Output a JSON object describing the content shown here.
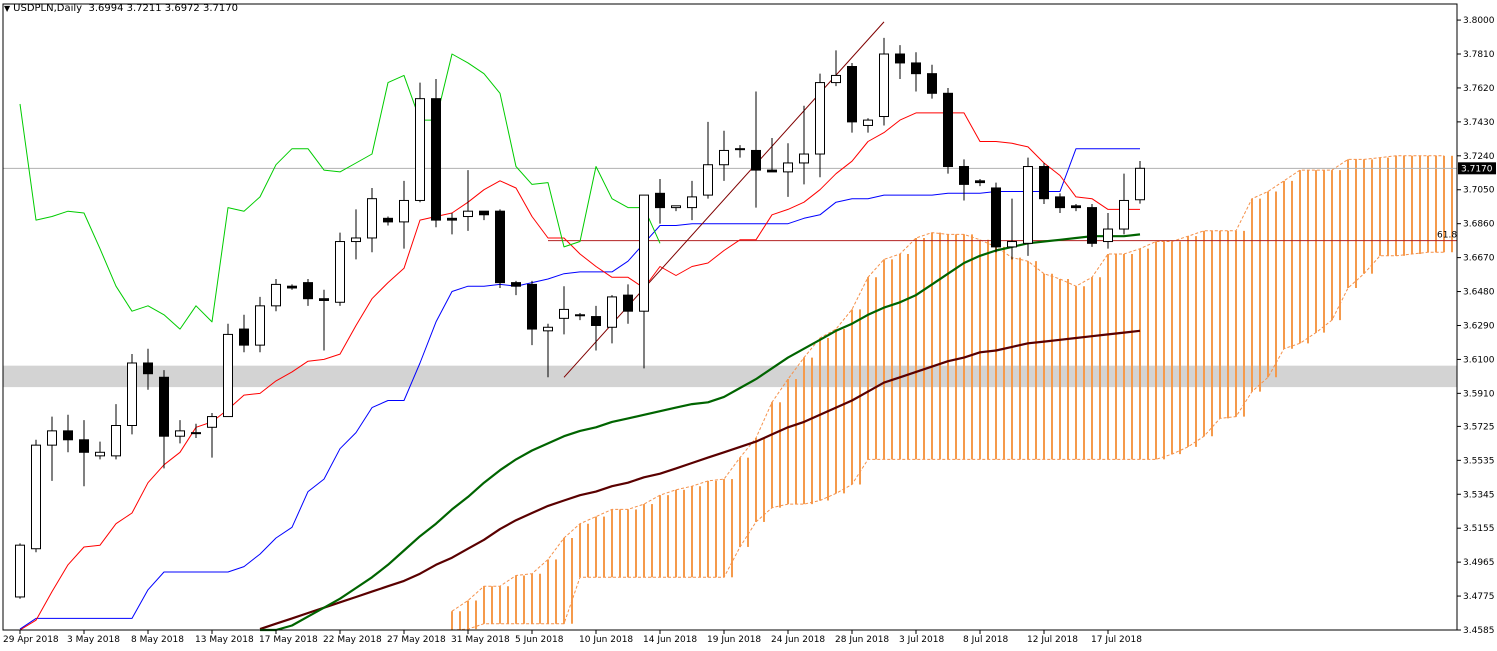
{
  "header": {
    "symbol": "USDPLN,Daily",
    "ohlc": "3.6994 3.7211 3.6972 3.7170",
    "menu_icon": "triangle-down-icon"
  },
  "chart_data": {
    "type": "candlestick",
    "title": "USDPLN,Daily",
    "xlabel": "",
    "ylabel": "",
    "ylim": [
      3.4585,
      3.809
    ],
    "y_ticks": [
      "3.8000",
      "3.7810",
      "3.7620",
      "3.7430",
      "3.7240",
      "3.7050",
      "3.6860",
      "3.6670",
      "3.6480",
      "3.6290",
      "3.6100",
      "3.5910",
      "3.5725",
      "3.5535",
      "3.5345",
      "3.5155",
      "3.4965",
      "3.4775",
      "3.4585"
    ],
    "x_ticks": [
      {
        "i": 0,
        "label": "29 Apr 2018"
      },
      {
        "i": 4,
        "label": "3 May 2018"
      },
      {
        "i": 8,
        "label": "8 May 2018"
      },
      {
        "i": 12,
        "label": "13 May 2018"
      },
      {
        "i": 16,
        "label": "17 May 2018"
      },
      {
        "i": 20,
        "label": "22 May 2018"
      },
      {
        "i": 24,
        "label": "27 May 2018"
      },
      {
        "i": 28,
        "label": "31 May 2018"
      },
      {
        "i": 32,
        "label": "5 Jun 2018"
      },
      {
        "i": 36,
        "label": "10 Jun 2018"
      },
      {
        "i": 40,
        "label": "14 Jun 2018"
      },
      {
        "i": 44,
        "label": "19 Jun 2018"
      },
      {
        "i": 48,
        "label": "24 Jun 2018"
      },
      {
        "i": 52,
        "label": "28 Jun 2018"
      },
      {
        "i": 56,
        "label": "3 Jul 2018"
      },
      {
        "i": 60,
        "label": "8 Jul 2018"
      },
      {
        "i": 64,
        "label": "12 Jul 2018"
      },
      {
        "i": 68,
        "label": "17 Jul 2018"
      }
    ],
    "current_price": "3.7170",
    "fib_label": "61.8",
    "fib_level": 3.6765,
    "support_zone": [
      3.598,
      3.603
    ],
    "candles": [
      [
        3.477,
        3.507,
        3.476,
        3.506
      ],
      [
        3.504,
        3.565,
        3.502,
        3.562
      ],
      [
        3.562,
        3.578,
        3.542,
        3.57
      ],
      [
        3.57,
        3.579,
        3.558,
        3.565
      ],
      [
        3.565,
        3.576,
        3.539,
        3.558
      ],
      [
        3.556,
        3.564,
        3.554,
        3.558
      ],
      [
        3.556,
        3.585,
        3.554,
        3.573
      ],
      [
        3.573,
        3.613,
        3.568,
        3.608
      ],
      [
        3.608,
        3.616,
        3.593,
        3.602
      ],
      [
        3.6,
        3.604,
        3.549,
        3.567
      ],
      [
        3.567,
        3.576,
        3.563,
        3.57
      ],
      [
        3.569,
        3.574,
        3.566,
        3.569
      ],
      [
        3.572,
        3.58,
        3.555,
        3.578
      ],
      [
        3.578,
        3.63,
        3.578,
        3.624
      ],
      [
        3.627,
        3.635,
        3.614,
        3.618
      ],
      [
        3.618,
        3.645,
        3.614,
        3.64
      ],
      [
        3.64,
        3.655,
        3.637,
        3.652
      ],
      [
        3.651,
        3.652,
        3.649,
        3.65
      ],
      [
        3.653,
        3.655,
        3.64,
        3.644
      ],
      [
        3.644,
        3.649,
        3.615,
        3.643
      ],
      [
        3.642,
        3.681,
        3.64,
        3.676
      ],
      [
        3.676,
        3.694,
        3.666,
        3.678
      ],
      [
        3.678,
        3.706,
        3.67,
        3.7
      ],
      [
        3.689,
        3.69,
        3.685,
        3.687
      ],
      [
        3.687,
        3.71,
        3.672,
        3.699
      ],
      [
        3.699,
        3.765,
        3.698,
        3.756
      ],
      [
        3.756,
        3.767,
        3.684,
        3.688
      ],
      [
        3.689,
        3.692,
        3.68,
        3.688
      ],
      [
        3.69,
        3.716,
        3.682,
        3.693
      ],
      [
        3.693,
        3.693,
        3.688,
        3.691
      ],
      [
        3.693,
        3.694,
        3.65,
        3.653
      ],
      [
        3.653,
        3.654,
        3.646,
        3.651
      ],
      [
        3.652,
        3.654,
        3.618,
        3.627
      ],
      [
        3.626,
        3.63,
        3.6,
        3.628
      ],
      [
        3.633,
        3.651,
        3.624,
        3.638
      ],
      [
        3.635,
        3.636,
        3.632,
        3.635
      ],
      [
        3.634,
        3.64,
        3.615,
        3.629
      ],
      [
        3.628,
        3.646,
        3.619,
        3.645
      ],
      [
        3.646,
        3.652,
        3.63,
        3.637
      ],
      [
        3.637,
        3.702,
        3.605,
        3.702
      ],
      [
        3.703,
        3.711,
        3.686,
        3.695
      ],
      [
        3.695,
        3.696,
        3.693,
        3.696
      ],
      [
        3.695,
        3.71,
        3.688,
        3.701
      ],
      [
        3.702,
        3.743,
        3.7,
        3.719
      ],
      [
        3.719,
        3.738,
        3.71,
        3.727
      ],
      [
        3.728,
        3.73,
        3.723,
        3.728
      ],
      [
        3.727,
        3.76,
        3.695,
        3.716
      ],
      [
        3.716,
        3.734,
        3.715,
        3.715
      ],
      [
        3.715,
        3.731,
        3.701,
        3.72
      ],
      [
        3.72,
        3.752,
        3.708,
        3.725
      ],
      [
        3.725,
        3.77,
        3.712,
        3.765
      ],
      [
        3.765,
        3.783,
        3.763,
        3.769
      ],
      [
        3.774,
        3.776,
        3.737,
        3.743
      ],
      [
        3.741,
        3.745,
        3.737,
        3.744
      ],
      [
        3.746,
        3.79,
        3.741,
        3.781
      ],
      [
        3.781,
        3.786,
        3.767,
        3.776
      ],
      [
        3.776,
        3.782,
        3.76,
        3.77
      ],
      [
        3.77,
        3.775,
        3.756,
        3.759
      ],
      [
        3.759,
        3.762,
        3.714,
        3.718
      ],
      [
        3.718,
        3.722,
        3.699,
        3.708
      ],
      [
        3.71,
        3.711,
        3.707,
        3.709
      ],
      [
        3.706,
        3.709,
        3.67,
        3.673
      ],
      [
        3.673,
        3.7,
        3.666,
        3.676
      ],
      [
        3.675,
        3.723,
        3.668,
        3.718
      ],
      [
        3.718,
        3.72,
        3.697,
        3.7
      ],
      [
        3.701,
        3.703,
        3.692,
        3.695
      ],
      [
        3.696,
        3.697,
        3.693,
        3.695
      ],
      [
        3.695,
        3.697,
        3.673,
        3.675
      ],
      [
        3.676,
        3.692,
        3.672,
        3.683
      ],
      [
        3.683,
        3.714,
        3.68,
        3.699
      ],
      [
        3.6994,
        3.7211,
        3.6972,
        3.717
      ]
    ],
    "series": [
      {
        "style": "Tenkan-sen",
        "color": "#ff0000",
        "values": [
          3.443,
          3.464,
          3.48,
          3.495,
          3.505,
          3.506,
          3.518,
          3.524,
          3.541,
          3.551,
          3.558,
          3.572,
          3.575,
          3.582,
          3.59,
          3.591,
          3.598,
          3.603,
          3.609,
          3.61,
          3.613,
          3.629,
          3.644,
          3.653,
          3.661,
          3.688,
          3.69,
          3.692,
          3.698,
          3.705,
          3.71,
          3.706,
          3.69,
          3.678,
          3.678,
          3.669,
          3.662,
          3.656,
          3.656,
          3.65,
          3.662,
          3.657,
          3.662,
          3.664,
          3.671,
          3.677,
          3.677,
          3.691,
          3.694,
          3.698,
          3.705,
          3.714,
          3.721,
          3.732,
          3.737,
          3.744,
          3.748,
          3.748,
          3.748,
          3.748,
          3.732,
          3.732,
          3.731,
          3.729,
          3.72,
          3.713,
          3.701,
          3.7,
          3.694,
          3.694,
          3.694
        ]
      },
      {
        "style": "Kijun-sen",
        "color": "#0000ff",
        "values": [
          3.459,
          3.465,
          3.465,
          3.465,
          3.465,
          3.465,
          3.465,
          3.465,
          3.481,
          3.491,
          3.491,
          3.491,
          3.491,
          3.491,
          3.494,
          3.501,
          3.51,
          3.516,
          3.536,
          3.543,
          3.56,
          3.569,
          3.583,
          3.587,
          3.587,
          3.608,
          3.631,
          3.648,
          3.651,
          3.651,
          3.652,
          3.651,
          3.653,
          3.655,
          3.658,
          3.659,
          3.659,
          3.659,
          3.665,
          3.675,
          3.685,
          3.685,
          3.686,
          3.686,
          3.686,
          3.686,
          3.686,
          3.686,
          3.686,
          3.689,
          3.691,
          3.698,
          3.7,
          3.7,
          3.702,
          3.702,
          3.702,
          3.702,
          3.703,
          3.703,
          3.703,
          3.704,
          3.704,
          3.704,
          3.704,
          3.704,
          3.728,
          3.728,
          3.728,
          3.728,
          3.728
        ]
      },
      {
        "style": "Chikou Span",
        "color": "#00cc00",
        "values": [
          3.753,
          3.688,
          3.69,
          3.693,
          3.692,
          3.672,
          3.651,
          3.637,
          3.64,
          3.635,
          3.627,
          3.64,
          3.631,
          3.695,
          3.693,
          3.701,
          3.719,
          3.728,
          3.728,
          3.716,
          3.715,
          3.72,
          3.725,
          3.765,
          3.769,
          3.744,
          3.744,
          3.781,
          3.776,
          3.77,
          3.759,
          3.718,
          3.708,
          3.709,
          3.673,
          3.676,
          3.718,
          3.7,
          3.695,
          3.695,
          3.675
        ]
      },
      {
        "style": "MA long",
        "color": "#006400",
        "values": [
          3.45,
          3.456,
          3.461,
          3.466,
          3.471,
          3.476,
          3.482,
          3.488,
          3.495,
          3.503,
          3.511,
          3.518,
          3.526,
          3.533,
          3.541,
          3.548,
          3.554,
          3.559,
          3.563,
          3.567,
          3.57,
          3.572,
          3.575,
          3.577,
          3.579,
          3.581,
          3.583,
          3.585,
          3.586,
          3.589,
          3.594,
          3.599,
          3.605,
          3.611,
          3.616,
          3.621,
          3.626,
          3.63,
          3.635,
          3.639,
          3.642,
          3.646,
          3.652,
          3.658,
          3.664,
          3.668,
          3.671,
          3.673,
          3.675,
          3.676,
          3.677,
          3.678,
          3.679,
          3.679,
          3.679,
          3.68
        ]
      },
      {
        "style": "MA very long",
        "color": "#5a0000",
        "values": [
          3.459,
          3.462,
          3.465,
          3.468,
          3.471,
          3.474,
          3.477,
          3.48,
          3.483,
          3.486,
          3.49,
          3.495,
          3.499,
          3.504,
          3.509,
          3.515,
          3.52,
          3.524,
          3.528,
          3.531,
          3.534,
          3.536,
          3.539,
          3.541,
          3.544,
          3.546,
          3.549,
          3.552,
          3.555,
          3.558,
          3.561,
          3.564,
          3.568,
          3.572,
          3.575,
          3.579,
          3.583,
          3.587,
          3.592,
          3.597,
          3.6,
          3.603,
          3.606,
          3.609,
          3.611,
          3.614,
          3.615,
          3.617,
          3.619,
          3.62,
          3.621,
          3.622,
          3.623,
          3.624,
          3.625,
          3.626
        ]
      },
      {
        "style": "Senkou Span A",
        "color": "#ff8c1a",
        "values": [
          3.469,
          3.475,
          3.483,
          3.483,
          3.489,
          3.49,
          3.498,
          3.51,
          3.518,
          3.522,
          3.526,
          3.526,
          3.529,
          3.534,
          3.537,
          3.539,
          3.542,
          3.543,
          3.555,
          3.566,
          3.586,
          3.599,
          3.611,
          3.622,
          3.627,
          3.638,
          3.656,
          3.666,
          3.669,
          3.678,
          3.681,
          3.68,
          3.68,
          3.677,
          3.673,
          3.667,
          3.665,
          3.658,
          3.655,
          3.651,
          3.656,
          3.669,
          3.669,
          3.672,
          3.676,
          3.676,
          3.679,
          3.682,
          3.682,
          3.682,
          3.7,
          3.704,
          3.71,
          3.716,
          3.716,
          3.716,
          3.722,
          3.722,
          3.723,
          3.724,
          3.724,
          3.724,
          3.724,
          3.725,
          3.717,
          3.717,
          3.717,
          3.717,
          3.717,
          3.716,
          3.714
        ]
      },
      {
        "style": "Senkou Span B",
        "color": "#ff8c1a",
        "values": [
          3.456,
          3.459,
          3.462,
          3.462,
          3.462,
          3.462,
          3.462,
          3.462,
          3.488,
          3.488,
          3.488,
          3.488,
          3.488,
          3.488,
          3.488,
          3.488,
          3.488,
          3.488,
          3.505,
          3.519,
          3.527,
          3.529,
          3.529,
          3.531,
          3.535,
          3.54,
          3.554,
          3.554,
          3.554,
          3.554,
          3.554,
          3.554,
          3.554,
          3.554,
          3.554,
          3.554,
          3.554,
          3.554,
          3.554,
          3.554,
          3.554,
          3.554,
          3.554,
          3.554,
          3.554,
          3.557,
          3.561,
          3.567,
          3.577,
          3.578,
          3.592,
          3.6,
          3.616,
          3.619,
          3.625,
          3.632,
          3.65,
          3.658,
          3.668,
          3.668,
          3.669,
          3.67,
          3.67,
          3.67,
          3.67,
          3.671,
          3.671,
          3.671,
          3.671,
          3.671,
          3.671
        ]
      },
      {
        "style": "trendline",
        "color": "#800000",
        "values": [
          3.6,
          3.799,
          3.616,
          3.799
        ]
      }
    ]
  }
}
